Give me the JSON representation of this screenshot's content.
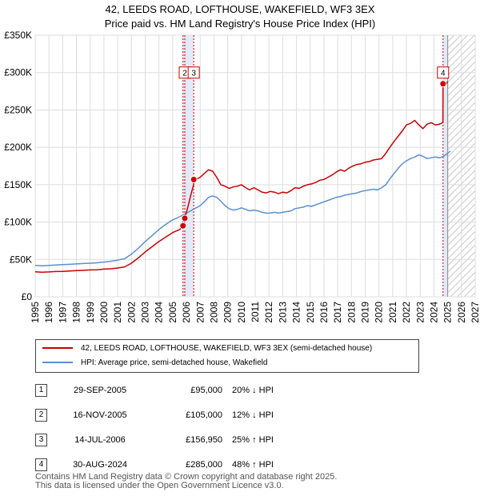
{
  "title": "42, LEEDS ROAD, LOFTHOUSE, WAKEFIELD, WF3 3EX",
  "subtitle": "Price paid vs. HM Land Registry's House Price Index (HPI)",
  "chart_data": {
    "type": "line",
    "title": "42, LEEDS ROAD, LOFTHOUSE, WAKEFIELD, WF3 3EX",
    "xlim": [
      1995,
      2027
    ],
    "ylim": [
      0,
      350000
    ],
    "y_ticks": [
      0,
      50000,
      100000,
      150000,
      200000,
      250000,
      300000,
      350000
    ],
    "y_tick_labels": [
      "£0",
      "£50K",
      "£100K",
      "£150K",
      "£200K",
      "£250K",
      "£300K",
      "£350K"
    ],
    "x_ticks": [
      1995,
      1996,
      1997,
      1998,
      1999,
      2000,
      2001,
      2002,
      2003,
      2004,
      2005,
      2006,
      2007,
      2008,
      2009,
      2010,
      2011,
      2012,
      2013,
      2014,
      2015,
      2016,
      2017,
      2018,
      2019,
      2020,
      2021,
      2022,
      2023,
      2024,
      2025,
      2026,
      2027
    ],
    "x_tick_labels": [
      "1995",
      "1996",
      "1997",
      "1998",
      "1999",
      "2000",
      "2001",
      "2002",
      "2003",
      "2004",
      "2005",
      "2006",
      "2007",
      "2008",
      "2009",
      "2010",
      "2011",
      "2012",
      "2013",
      "2014",
      "2015",
      "2016",
      "2017",
      "2018",
      "2019",
      "2020",
      "2021",
      "2022",
      "2023",
      "2024",
      "2025",
      "2026",
      "2027"
    ],
    "shaded_periods": [
      [
        2005.75,
        2006.53
      ],
      [
        2024.66,
        2025.0
      ]
    ],
    "hatched_from": 2025.0,
    "series": [
      {
        "name": "42, LEEDS ROAD, LOFTHOUSE, WAKEFIELD, WF3 3EX (semi-detached house)",
        "color": "#cc0000",
        "x": [
          1995,
          1995.5,
          1996,
          1996.5,
          1997,
          1997.5,
          1998,
          1998.5,
          1999,
          1999.5,
          2000,
          2000.5,
          2001,
          2001.5,
          2002,
          2002.5,
          2003,
          2003.5,
          2004,
          2004.5,
          2005,
          2005.5,
          2005.74,
          2005.75,
          2005.87,
          2005.88,
          2006.1,
          2006.3,
          2006.52,
          2006.53,
          2006.8,
          2007,
          2007.3,
          2007.6,
          2007.9,
          2008.2,
          2008.5,
          2008.8,
          2009.1,
          2009.4,
          2009.7,
          2010,
          2010.3,
          2010.6,
          2010.9,
          2011.2,
          2011.5,
          2011.8,
          2012.1,
          2012.4,
          2012.7,
          2013,
          2013.3,
          2013.6,
          2013.9,
          2014.2,
          2014.5,
          2014.8,
          2015.1,
          2015.4,
          2015.7,
          2016,
          2016.3,
          2016.6,
          2016.9,
          2017.2,
          2017.5,
          2017.8,
          2018.1,
          2018.4,
          2018.7,
          2019,
          2019.3,
          2019.6,
          2019.9,
          2020.2,
          2020.5,
          2020.8,
          2021.1,
          2021.4,
          2021.7,
          2022,
          2022.3,
          2022.6,
          2022.9,
          2023.2,
          2023.5,
          2023.8,
          2024.1,
          2024.4,
          2024.65,
          2024.66,
          2024.8,
          2025.0
        ],
        "y": [
          33500,
          33000,
          33300,
          33800,
          34000,
          34500,
          35000,
          35400,
          36000,
          36200,
          37000,
          37500,
          38500,
          40000,
          45000,
          52000,
          60000,
          67000,
          74000,
          80000,
          86000,
          90000,
          94000,
          95000,
          100000,
          105000,
          120000,
          135000,
          150000,
          156950,
          158000,
          160000,
          165000,
          170000,
          168000,
          160000,
          150000,
          148000,
          145000,
          147000,
          148000,
          150000,
          146000,
          143000,
          146000,
          143000,
          140000,
          139000,
          141000,
          140000,
          138000,
          140000,
          139000,
          142000,
          146000,
          145000,
          148000,
          150000,
          151000,
          153000,
          156000,
          157000,
          160000,
          163000,
          167000,
          170000,
          168000,
          172000,
          175000,
          177000,
          178000,
          180000,
          181000,
          183000,
          184000,
          185000,
          192000,
          200000,
          208000,
          215000,
          222000,
          230000,
          232000,
          236000,
          230000,
          225000,
          231000,
          233000,
          230000,
          231000,
          233000,
          285000,
          282000,
          288000
        ]
      },
      {
        "name": "HPI: Average price, semi-detached house, Wakefield",
        "color": "#5b8fd0",
        "x": [
          1995,
          1995.5,
          1996,
          1996.5,
          1997,
          1997.5,
          1998,
          1998.5,
          1999,
          1999.5,
          2000,
          2000.5,
          2001,
          2001.5,
          2002,
          2002.5,
          2003,
          2003.5,
          2004,
          2004.5,
          2005,
          2005.5,
          2006,
          2006.5,
          2007,
          2007.3,
          2007.6,
          2007.9,
          2008.2,
          2008.5,
          2008.8,
          2009.1,
          2009.4,
          2009.7,
          2010,
          2010.3,
          2010.6,
          2010.9,
          2011.2,
          2011.5,
          2011.8,
          2012.1,
          2012.4,
          2012.7,
          2013,
          2013.3,
          2013.6,
          2013.9,
          2014.2,
          2014.5,
          2014.8,
          2015.1,
          2015.4,
          2015.7,
          2016,
          2016.3,
          2016.6,
          2016.9,
          2017.2,
          2017.5,
          2017.8,
          2018.1,
          2018.4,
          2018.7,
          2019,
          2019.3,
          2019.6,
          2019.9,
          2020.2,
          2020.5,
          2020.8,
          2021.1,
          2021.4,
          2021.7,
          2022,
          2022.3,
          2022.6,
          2022.9,
          2023.2,
          2023.5,
          2023.8,
          2024.1,
          2024.4,
          2024.7,
          2025.0,
          2025.2
        ],
        "y": [
          42000,
          41500,
          42000,
          42500,
          43000,
          43500,
          44000,
          44500,
          45000,
          45500,
          46500,
          47500,
          49000,
          51000,
          57000,
          65000,
          74000,
          82000,
          90000,
          97000,
          103000,
          107000,
          112000,
          117000,
          122000,
          127000,
          133000,
          135000,
          133000,
          128000,
          122000,
          118000,
          116000,
          117000,
          119000,
          117000,
          115000,
          116000,
          115000,
          113000,
          112000,
          112000,
          113000,
          112000,
          113000,
          114000,
          115000,
          118000,
          119000,
          120000,
          122000,
          121000,
          123000,
          125000,
          127000,
          129000,
          131000,
          133000,
          134000,
          136000,
          137000,
          138000,
          139000,
          141000,
          142000,
          143000,
          144000,
          143000,
          146000,
          150000,
          158000,
          165000,
          172000,
          178000,
          182000,
          185000,
          187000,
          190000,
          188000,
          185000,
          186000,
          187000,
          186000,
          188000,
          192000,
          195000
        ]
      }
    ],
    "sales": [
      {
        "label": "1",
        "x": 2005.75,
        "y": 95000
      },
      {
        "label": "2",
        "x": 2005.88,
        "y": 105000
      },
      {
        "label": "3",
        "x": 2006.53,
        "y": 156950
      },
      {
        "label": "4",
        "x": 2024.66,
        "y": 285000
      }
    ],
    "callouts": [
      {
        "text": "2",
        "x": 2005.88,
        "y": 300000
      },
      {
        "text": "3",
        "x": 2006.53,
        "y": 300000
      },
      {
        "text": "4",
        "x": 2024.66,
        "y": 300000
      }
    ]
  },
  "legend": [
    {
      "label": "42, LEEDS ROAD, LOFTHOUSE, WAKEFIELD, WF3 3EX (semi-detached house)",
      "color": "#cc0000"
    },
    {
      "label": "HPI: Average price, semi-detached house, Wakefield",
      "color": "#5b8fd0"
    }
  ],
  "transactions": [
    {
      "num": "1",
      "date": "29-SEP-2005",
      "price": "£95,000",
      "hpi": "20% ↓ HPI"
    },
    {
      "num": "2",
      "date": "16-NOV-2005",
      "price": "£105,000",
      "hpi": "12% ↓ HPI"
    },
    {
      "num": "3",
      "date": "14-JUL-2006",
      "price": "£156,950",
      "hpi": "25% ↑ HPI"
    },
    {
      "num": "4",
      "date": "30-AUG-2024",
      "price": "£285,000",
      "hpi": "48% ↑ HPI"
    }
  ],
  "footer": {
    "line1": "Contains HM Land Registry data © Crown copyright and database right 2025.",
    "line2": "This data is licensed under the Open Government Licence v3.0."
  }
}
